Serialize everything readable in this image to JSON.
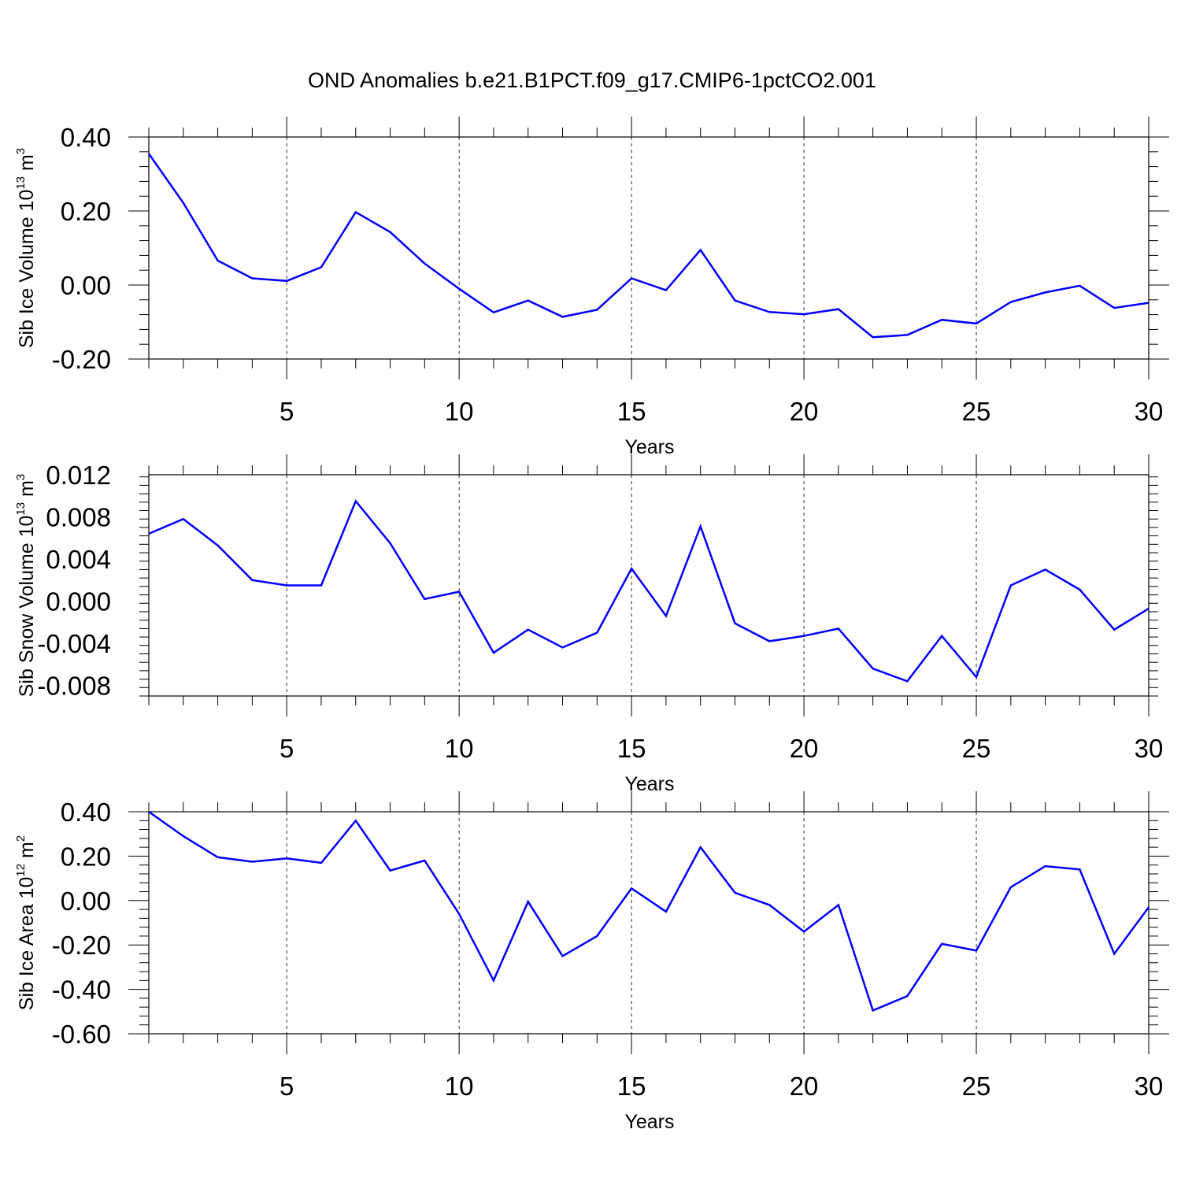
{
  "figure_title": "OND Anomalies b.e21.B1PCT.f09_g17.CMIP6-1pctCO2.001",
  "line_color": "#0000ff",
  "chart_data": [
    {
      "type": "line",
      "title": "",
      "xlabel": "Years",
      "ylabel": {
        "main": "Sib Ice Volume 10",
        "exp": "13",
        "unit": " m",
        "unit_exp": "3"
      },
      "xlim": [
        1,
        30
      ],
      "ylim": [
        -0.2,
        0.4
      ],
      "xticks": [
        5,
        10,
        15,
        20,
        25,
        30
      ],
      "yticks": [
        -0.2,
        0.0,
        0.2,
        0.4
      ],
      "ytick_labels": [
        "-0.20",
        "0.00",
        "0.20",
        "0.40"
      ],
      "x": [
        1,
        2,
        3,
        4,
        5,
        6,
        7,
        8,
        9,
        10,
        11,
        12,
        13,
        14,
        15,
        16,
        17,
        18,
        19,
        20,
        21,
        22,
        23,
        24,
        25,
        26,
        27,
        28,
        29,
        30
      ],
      "series": [
        {
          "values": [
            0.355,
            0.222,
            0.066,
            0.018,
            0.011,
            0.048,
            0.197,
            0.143,
            0.058,
            -0.01,
            -0.074,
            -0.042,
            -0.086,
            -0.067,
            0.018,
            -0.014,
            0.095,
            -0.042,
            -0.073,
            -0.079,
            -0.065,
            -0.141,
            -0.135,
            -0.094,
            -0.104,
            -0.046,
            -0.02,
            -0.002,
            -0.062,
            -0.048
          ]
        }
      ]
    },
    {
      "type": "line",
      "title": "",
      "xlabel": "Years",
      "ylabel": {
        "main": "Sib Snow Volume 10",
        "exp": "13",
        "unit": " m",
        "unit_exp": "3"
      },
      "xlim": [
        1,
        30
      ],
      "ylim": [
        -0.009,
        0.012
      ],
      "xticks": [
        5,
        10,
        15,
        20,
        25,
        30
      ],
      "yticks": [
        -0.008,
        -0.004,
        0.0,
        0.004,
        0.008,
        0.012
      ],
      "ytick_labels": [
        "-0.008",
        "-0.004",
        "0.000",
        "0.004",
        "0.008",
        "0.012"
      ],
      "x": [
        1,
        2,
        3,
        4,
        5,
        6,
        7,
        8,
        9,
        10,
        11,
        12,
        13,
        14,
        15,
        16,
        17,
        18,
        19,
        20,
        21,
        22,
        23,
        24,
        25,
        26,
        27,
        28,
        29,
        30
      ],
      "series": [
        {
          "values": [
            0.0064,
            0.0078,
            0.0053,
            0.002,
            0.0015,
            0.0015,
            0.0095,
            0.0055,
            0.0002,
            0.0009,
            -0.0049,
            -0.0027,
            -0.0044,
            -0.003,
            0.0031,
            -0.0014,
            0.0071,
            -0.0021,
            -0.0038,
            -0.0033,
            -0.0026,
            -0.0064,
            -0.0076,
            -0.0033,
            -0.0072,
            0.0015,
            0.003,
            0.0011,
            -0.0027,
            -0.0007
          ]
        }
      ]
    },
    {
      "type": "line",
      "title": "",
      "xlabel": "Years",
      "ylabel": {
        "main": "Sib Ice Area 10",
        "exp": "12",
        "unit": " m",
        "unit_exp": "2"
      },
      "xlim": [
        1,
        30
      ],
      "ylim": [
        -0.6,
        0.4
      ],
      "xticks": [
        5,
        10,
        15,
        20,
        25,
        30
      ],
      "yticks": [
        -0.6,
        -0.4,
        -0.2,
        0.0,
        0.2,
        0.4
      ],
      "ytick_labels": [
        "-0.60",
        "-0.40",
        "-0.20",
        "0.00",
        "0.20",
        "0.40"
      ],
      "x": [
        1,
        2,
        3,
        4,
        5,
        6,
        7,
        8,
        9,
        10,
        11,
        12,
        13,
        14,
        15,
        16,
        17,
        18,
        19,
        20,
        21,
        22,
        23,
        24,
        25,
        26,
        27,
        28,
        29,
        30
      ],
      "series": [
        {
          "values": [
            0.4,
            0.29,
            0.195,
            0.175,
            0.19,
            0.17,
            0.36,
            0.135,
            0.18,
            -0.06,
            -0.36,
            -0.005,
            -0.25,
            -0.16,
            0.055,
            -0.05,
            0.24,
            0.035,
            -0.02,
            -0.14,
            -0.02,
            -0.495,
            -0.43,
            -0.195,
            -0.225,
            0.06,
            0.155,
            0.14,
            -0.24,
            -0.03
          ]
        }
      ]
    }
  ]
}
